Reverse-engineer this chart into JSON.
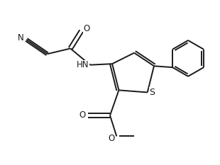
{
  "bg_color": "#ffffff",
  "line_color": "#1a1a1a",
  "line_width": 1.4,
  "font_size": 8.5,
  "figsize": [
    3.1,
    2.33
  ],
  "dpi": 100,
  "xlim": [
    0,
    10
  ],
  "ylim": [
    0,
    7.5
  ]
}
